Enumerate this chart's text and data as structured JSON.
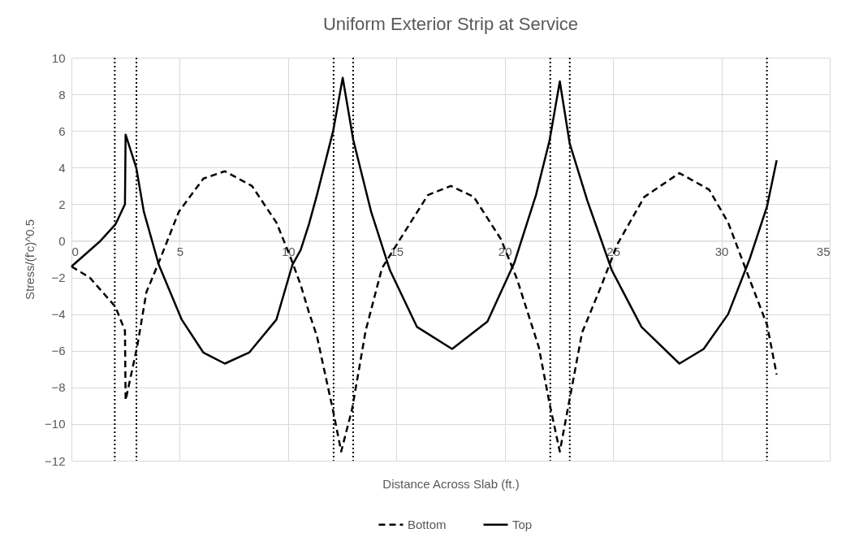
{
  "chart_data": {
    "type": "line",
    "title": "Uniform Exterior Strip at Service",
    "xlabel": "Distance Across Slab (ft.)",
    "ylabel": "Stress/(f'c)^0.5",
    "xlim": [
      0,
      35
    ],
    "xticks": [
      0,
      5,
      10,
      15,
      20,
      25,
      30,
      35
    ],
    "ylim": [
      -12,
      10
    ],
    "yticks": [
      -12,
      -10,
      -8,
      -6,
      -4,
      -2,
      0,
      2,
      4,
      6,
      8,
      10
    ],
    "grid": true,
    "legend": "bottom",
    "marker": "none",
    "series": [
      {
        "name": "Bottom",
        "color": "#000000",
        "line_style": "dashed",
        "x": [
          0,
          0.84,
          2.03,
          2.47,
          2.5,
          3.03,
          3.46,
          4.09,
          4.96,
          6.09,
          7.08,
          8.33,
          9.46,
          10.08,
          10.58,
          10.96,
          11.33,
          12.08,
          12.45,
          12.95,
          13.58,
          14.33,
          15.33,
          16.45,
          17.51,
          18.57,
          19.82,
          20.57,
          21.57,
          22.07,
          22.54,
          23.0,
          23.57,
          24.44,
          25.19,
          26.44,
          28.06,
          29.43,
          30.31,
          31.3,
          32.11,
          32.55
        ],
        "values": [
          -1.4,
          -2.0,
          -3.6,
          -4.9,
          -8.7,
          -5.8,
          -2.8,
          -1.0,
          1.6,
          3.4,
          3.8,
          3.0,
          1.0,
          -0.8,
          -2.4,
          -3.9,
          -5.2,
          -9.3,
          -11.5,
          -9.2,
          -4.9,
          -1.5,
          0.4,
          2.5,
          3.0,
          2.4,
          0.1,
          -2.1,
          -5.8,
          -8.9,
          -11.5,
          -8.6,
          -5.0,
          -2.5,
          -0.2,
          2.4,
          3.7,
          2.8,
          1.0,
          -2.1,
          -4.6,
          -7.3
        ]
      },
      {
        "name": "Top",
        "color": "#000000",
        "line_style": "solid",
        "x": [
          0,
          1.34,
          2.03,
          2.47,
          2.5,
          2.99,
          3.34,
          4.03,
          5.09,
          6.09,
          7.08,
          8.2,
          9.46,
          10.2,
          10.58,
          10.96,
          11.33,
          12.08,
          12.52,
          13.01,
          13.83,
          14.7,
          15.95,
          17.57,
          19.2,
          20.44,
          21.44,
          22.07,
          22.54,
          23.0,
          23.81,
          24.94,
          26.31,
          28.06,
          29.18,
          30.31,
          31.3,
          32.11,
          32.55
        ],
        "values": [
          -1.4,
          0.0,
          0.9,
          2.0,
          5.8,
          4.0,
          1.6,
          -1.3,
          -4.3,
          -6.1,
          -6.7,
          -6.1,
          -4.3,
          -1.3,
          -0.5,
          0.9,
          2.5,
          6.0,
          8.9,
          5.5,
          1.6,
          -1.6,
          -4.7,
          -5.9,
          -4.4,
          -1.2,
          2.5,
          5.5,
          8.7,
          5.3,
          2.2,
          -1.6,
          -4.7,
          -6.7,
          -5.9,
          -4.0,
          -1.0,
          1.9,
          4.4
        ]
      }
    ],
    "ref_lines": [
      {
        "axis": "x",
        "value": 2.0,
        "color": "#000000",
        "line_style": "dotted"
      },
      {
        "axis": "x",
        "value": 3.0,
        "color": "#000000",
        "line_style": "dotted"
      },
      {
        "axis": "x",
        "value": 12.1,
        "color": "#000000",
        "line_style": "dotted"
      },
      {
        "axis": "x",
        "value": 13.0,
        "color": "#000000",
        "line_style": "dotted"
      },
      {
        "axis": "x",
        "value": 22.1,
        "color": "#000000",
        "line_style": "dotted"
      },
      {
        "axis": "x",
        "value": 23.0,
        "color": "#000000",
        "line_style": "dotted"
      },
      {
        "axis": "x",
        "value": 32.1,
        "color": "#000000",
        "line_style": "dotted"
      }
    ]
  }
}
